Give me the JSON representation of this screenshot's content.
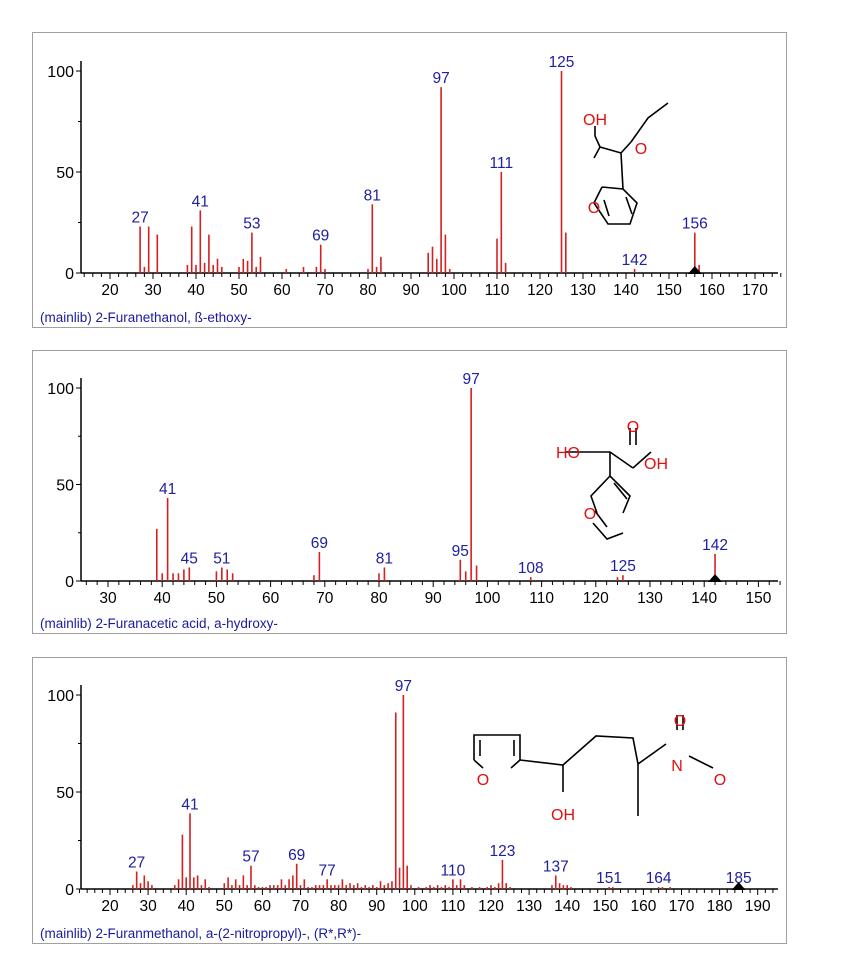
{
  "chart_data": [
    {
      "type": "bar",
      "title": "(mainlib) 2-Furanethanol, ß-ethoxy-",
      "xlim": [
        13,
        176
      ],
      "xticks": [
        20,
        30,
        40,
        50,
        60,
        70,
        80,
        90,
        100,
        110,
        120,
        130,
        140,
        150,
        160,
        170
      ],
      "ylim": [
        0,
        100
      ],
      "yticks": [
        0,
        50,
        100
      ],
      "molecular_ion_marker": 156,
      "peaks": [
        [
          27,
          23
        ],
        [
          28,
          3
        ],
        [
          29,
          23
        ],
        [
          31,
          19
        ],
        [
          38,
          4
        ],
        [
          39,
          23
        ],
        [
          40,
          4
        ],
        [
          41,
          31
        ],
        [
          42,
          5
        ],
        [
          43,
          19
        ],
        [
          44,
          4
        ],
        [
          45,
          7
        ],
        [
          46,
          3
        ],
        [
          50,
          3
        ],
        [
          51,
          7
        ],
        [
          52,
          6
        ],
        [
          53,
          20
        ],
        [
          54,
          3
        ],
        [
          55,
          8
        ],
        [
          61,
          2
        ],
        [
          65,
          3
        ],
        [
          68,
          3
        ],
        [
          69,
          14
        ],
        [
          70,
          2
        ],
        [
          80,
          2
        ],
        [
          81,
          34
        ],
        [
          82,
          3
        ],
        [
          83,
          8
        ],
        [
          94,
          10
        ],
        [
          95,
          13
        ],
        [
          96,
          7
        ],
        [
          97,
          92
        ],
        [
          98,
          19
        ],
        [
          99,
          2
        ],
        [
          110,
          17
        ],
        [
          111,
          50
        ],
        [
          112,
          5
        ],
        [
          125,
          100
        ],
        [
          126,
          20
        ],
        [
          142,
          2
        ],
        [
          156,
          20
        ],
        [
          157,
          4
        ]
      ],
      "labels": [
        27,
        41,
        53,
        69,
        81,
        97,
        111,
        125,
        142,
        156
      ],
      "structure_labels": [
        "OH",
        "O",
        "O"
      ]
    },
    {
      "type": "bar",
      "title": "(mainlib) 2-Furanacetic acid, a-hydroxy-",
      "xlim": [
        25,
        155
      ],
      "xticks": [
        30,
        40,
        50,
        60,
        70,
        80,
        90,
        100,
        110,
        120,
        130,
        140,
        150
      ],
      "ylim": [
        0,
        100
      ],
      "yticks": [
        0,
        50,
        100
      ],
      "molecular_ion_marker": 142,
      "peaks": [
        [
          39,
          27
        ],
        [
          40,
          4
        ],
        [
          41,
          43
        ],
        [
          42,
          4
        ],
        [
          43,
          4
        ],
        [
          44,
          6
        ],
        [
          45,
          7
        ],
        [
          50,
          5
        ],
        [
          51,
          7
        ],
        [
          52,
          6
        ],
        [
          53,
          4
        ],
        [
          68,
          3
        ],
        [
          69,
          15
        ],
        [
          80,
          4
        ],
        [
          81,
          7
        ],
        [
          95,
          11
        ],
        [
          96,
          5
        ],
        [
          97,
          100
        ],
        [
          98,
          8
        ],
        [
          108,
          2
        ],
        [
          124,
          2
        ],
        [
          125,
          3
        ],
        [
          142,
          14
        ]
      ],
      "labels": [
        41,
        45,
        51,
        69,
        81,
        95,
        97,
        108,
        125,
        142
      ],
      "structure_labels": [
        "HO",
        "O",
        "OH",
        "O"
      ]
    },
    {
      "type": "bar",
      "title": "(mainlib) 2-Furanmethanol, a-(2-nitropropyl)-, (R*,R*)-",
      "xlim": [
        12,
        194
      ],
      "xticks": [
        20,
        30,
        40,
        50,
        60,
        70,
        80,
        90,
        100,
        110,
        120,
        130,
        140,
        150,
        160,
        170,
        180,
        190
      ],
      "ylim": [
        0,
        100
      ],
      "yticks": [
        0,
        50,
        100
      ],
      "molecular_ion_marker": 185,
      "peaks": [
        [
          26,
          2
        ],
        [
          27,
          9
        ],
        [
          28,
          3
        ],
        [
          29,
          7
        ],
        [
          30,
          4
        ],
        [
          31,
          2
        ],
        [
          37,
          2
        ],
        [
          38,
          5
        ],
        [
          39,
          28
        ],
        [
          40,
          6
        ],
        [
          41,
          39
        ],
        [
          42,
          6
        ],
        [
          43,
          7
        ],
        [
          44,
          2
        ],
        [
          45,
          5
        ],
        [
          46,
          1
        ],
        [
          50,
          3
        ],
        [
          51,
          6
        ],
        [
          52,
          2
        ],
        [
          53,
          5
        ],
        [
          54,
          2
        ],
        [
          55,
          7
        ],
        [
          56,
          2
        ],
        [
          57,
          12
        ],
        [
          58,
          2
        ],
        [
          59,
          1
        ],
        [
          60,
          1
        ],
        [
          61,
          1
        ],
        [
          62,
          2
        ],
        [
          63,
          2
        ],
        [
          64,
          2
        ],
        [
          65,
          5
        ],
        [
          66,
          2
        ],
        [
          67,
          5
        ],
        [
          68,
          7
        ],
        [
          69,
          13
        ],
        [
          70,
          2
        ],
        [
          71,
          5
        ],
        [
          72,
          1
        ],
        [
          73,
          1
        ],
        [
          74,
          2
        ],
        [
          75,
          2
        ],
        [
          76,
          2
        ],
        [
          77,
          5
        ],
        [
          78,
          2
        ],
        [
          79,
          2
        ],
        [
          80,
          2
        ],
        [
          81,
          5
        ],
        [
          82,
          2
        ],
        [
          83,
          3
        ],
        [
          84,
          2
        ],
        [
          85,
          3
        ],
        [
          86,
          1
        ],
        [
          87,
          2
        ],
        [
          88,
          1
        ],
        [
          89,
          2
        ],
        [
          90,
          1
        ],
        [
          91,
          4
        ],
        [
          92,
          2
        ],
        [
          93,
          3
        ],
        [
          94,
          4
        ],
        [
          95,
          91
        ],
        [
          96,
          11
        ],
        [
          97,
          100
        ],
        [
          98,
          12
        ],
        [
          99,
          2
        ],
        [
          101,
          1
        ],
        [
          103,
          1
        ],
        [
          104,
          2
        ],
        [
          105,
          1
        ],
        [
          106,
          2
        ],
        [
          107,
          1
        ],
        [
          108,
          2
        ],
        [
          109,
          1
        ],
        [
          110,
          5
        ],
        [
          111,
          2
        ],
        [
          112,
          5
        ],
        [
          113,
          2
        ],
        [
          115,
          1
        ],
        [
          117,
          1
        ],
        [
          119,
          1
        ],
        [
          120,
          2
        ],
        [
          121,
          1
        ],
        [
          122,
          3
        ],
        [
          123,
          15
        ],
        [
          124,
          3
        ],
        [
          125,
          1
        ],
        [
          136,
          2
        ],
        [
          137,
          7
        ],
        [
          138,
          3
        ],
        [
          139,
          2
        ],
        [
          140,
          2
        ],
        [
          141,
          1
        ],
        [
          151,
          1
        ],
        [
          152,
          1
        ],
        [
          164,
          1
        ],
        [
          165,
          1
        ],
        [
          167,
          1
        ],
        [
          185,
          0.5
        ]
      ],
      "labels": [
        27,
        41,
        57,
        69,
        77,
        97,
        110,
        123,
        137,
        151,
        164,
        185
      ],
      "structure_labels": [
        "O",
        "OH",
        "N",
        "O",
        "O"
      ]
    }
  ]
}
